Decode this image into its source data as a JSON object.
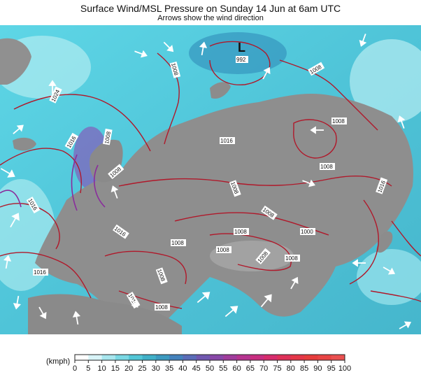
{
  "header": {
    "title": "Surface Wind/MSL Pressure on Sunday 14 Jun at 6am UTC",
    "subtitle": "Arrows show the wind direction"
  },
  "map": {
    "low_marker": "L",
    "isobar_labels": [
      "992",
      "1008",
      "1024",
      "1016",
      "1016",
      "1008",
      "1008",
      "1016",
      "1008",
      "1008",
      "1008",
      "1008",
      "1000",
      "1008",
      "1016",
      "1008",
      "1016",
      "1008",
      "1008",
      "1008",
      "1016",
      "1008",
      "1016",
      "1008",
      "1008"
    ]
  },
  "legend": {
    "unit": "(kmph)",
    "ticks": [
      "0",
      "5",
      "10",
      "15",
      "20",
      "25",
      "30",
      "35",
      "40",
      "45",
      "50",
      "55",
      "60",
      "65",
      "70",
      "75",
      "80",
      "85",
      "90",
      "95",
      "100"
    ],
    "colors": [
      "#ffffff",
      "#d8f4f8",
      "#a8e6ee",
      "#7ad8e4",
      "#52c6d6",
      "#40b0c8",
      "#3c9ac0",
      "#4482bc",
      "#5a6cb8",
      "#7058b0",
      "#8848a8",
      "#a03c9c",
      "#b63490",
      "#c82e80",
      "#d62c6c",
      "#de3058",
      "#e43648",
      "#e63c3c",
      "#e84444",
      "#ea5050"
    ]
  }
}
